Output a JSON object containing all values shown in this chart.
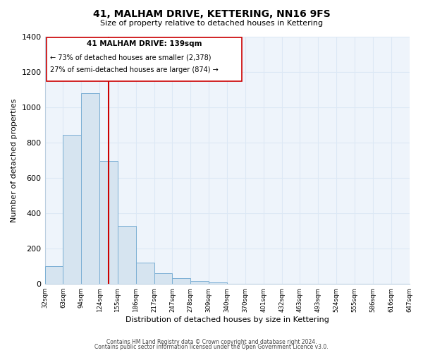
{
  "title": "41, MALHAM DRIVE, KETTERING, NN16 9FS",
  "subtitle": "Size of property relative to detached houses in Kettering",
  "xlabel": "Distribution of detached houses by size in Kettering",
  "ylabel": "Number of detached properties",
  "bar_color": "#d6e4f0",
  "bar_edge_color": "#7bafd4",
  "bin_labels": [
    "32sqm",
    "63sqm",
    "94sqm",
    "124sqm",
    "155sqm",
    "186sqm",
    "217sqm",
    "247sqm",
    "278sqm",
    "309sqm",
    "340sqm",
    "370sqm",
    "401sqm",
    "432sqm",
    "463sqm",
    "493sqm",
    "524sqm",
    "555sqm",
    "586sqm",
    "616sqm",
    "647sqm"
  ],
  "values": [
    100,
    845,
    1080,
    695,
    330,
    120,
    60,
    32,
    16,
    10,
    0,
    0,
    0,
    0,
    0,
    0,
    0,
    0,
    0,
    0
  ],
  "property_line_color": "#cc0000",
  "ylim": [
    0,
    1400
  ],
  "yticks": [
    0,
    200,
    400,
    600,
    800,
    1000,
    1200,
    1400
  ],
  "annotation_title": "41 MALHAM DRIVE: 139sqm",
  "annotation_line1": "← 73% of detached houses are smaller (2,378)",
  "annotation_line2": "27% of semi-detached houses are larger (874) →",
  "footer_line1": "Contains HM Land Registry data © Crown copyright and database right 2024.",
  "footer_line2": "Contains public sector information licensed under the Open Government Licence v3.0.",
  "background_color": "#ffffff",
  "grid_color": "#dce8f5",
  "plot_bg_color": "#eef4fb"
}
